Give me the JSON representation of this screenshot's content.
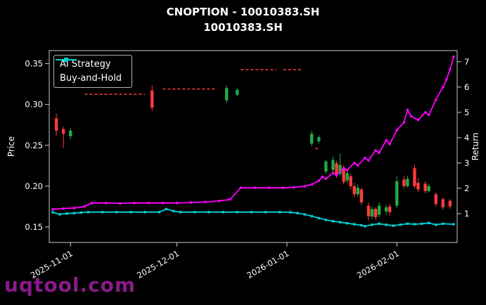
{
  "watermark": {
    "text": "uqtool.com"
  },
  "chart_data": {
    "type": "candlestick+line",
    "title": "CNOPTION - 10010383.SH",
    "subtitle": "10010383.SH",
    "ylabel_left": "Price",
    "ylabel_right": "Return",
    "legend_position": "upper-left",
    "grid": false,
    "price_ticks": [
      "0.15",
      "0.20",
      "0.25",
      "0.30",
      "0.35"
    ],
    "return_ticks": [
      "1",
      "2",
      "3",
      "4",
      "5",
      "6",
      "7"
    ],
    "x_ticks": [
      {
        "day": 5,
        "label": "2025-11-01"
      },
      {
        "day": 35,
        "label": "2025-12-01"
      },
      {
        "day": 66,
        "label": "2026-01-01"
      },
      {
        "day": 97,
        "label": "2026-02-01"
      }
    ],
    "price_lim": [
      0.131,
      0.366
    ],
    "return_lim": [
      -0.14,
      7.44
    ],
    "day_lim": [
      -1,
      114
    ],
    "colors": {
      "ai": "#ff00ff",
      "bh": "#00ced1",
      "up": "#22aa44",
      "down": "#ff3b3b",
      "text": "#ffffff",
      "axis": "#c8c8c8",
      "watermark": "#8b1a8b"
    },
    "series": [
      {
        "name": "AI Strategy",
        "axis": "return",
        "color_key": "ai",
        "marker": "circle",
        "points": [
          [
            0,
            1.17
          ],
          [
            3,
            1.2
          ],
          [
            6,
            1.22
          ],
          [
            9,
            1.28
          ],
          [
            11,
            1.42
          ],
          [
            15,
            1.42
          ],
          [
            19,
            1.4
          ],
          [
            23,
            1.42
          ],
          [
            27,
            1.42
          ],
          [
            31,
            1.42
          ],
          [
            35,
            1.42
          ],
          [
            39,
            1.44
          ],
          [
            43,
            1.46
          ],
          [
            47,
            1.5
          ],
          [
            50,
            1.56
          ],
          [
            53,
            2.02
          ],
          [
            57,
            2.02
          ],
          [
            61,
            2.02
          ],
          [
            65,
            2.02
          ],
          [
            68,
            2.04
          ],
          [
            71,
            2.08
          ],
          [
            73,
            2.15
          ],
          [
            75,
            2.3
          ],
          [
            76,
            2.45
          ],
          [
            77,
            2.38
          ],
          [
            79,
            2.6
          ],
          [
            80,
            2.52
          ],
          [
            82,
            2.8
          ],
          [
            83,
            2.72
          ],
          [
            85,
            3.0
          ],
          [
            86,
            2.9
          ],
          [
            88,
            3.2
          ],
          [
            89,
            3.1
          ],
          [
            91,
            3.5
          ],
          [
            92,
            3.4
          ],
          [
            94,
            3.9
          ],
          [
            95,
            3.75
          ],
          [
            97,
            4.3
          ],
          [
            99,
            4.6
          ],
          [
            100,
            5.1
          ],
          [
            101,
            4.85
          ],
          [
            103,
            4.7
          ],
          [
            105,
            5.0
          ],
          [
            106,
            4.9
          ],
          [
            108,
            5.5
          ],
          [
            110,
            6.0
          ],
          [
            111,
            6.3
          ],
          [
            112,
            6.7
          ],
          [
            113,
            7.2
          ]
        ]
      },
      {
        "name": "Buy-and-Hold",
        "axis": "return",
        "color_key": "bh",
        "marker": "square",
        "points": [
          [
            0,
            1.05
          ],
          [
            2,
            0.97
          ],
          [
            4,
            1.0
          ],
          [
            6,
            1.02
          ],
          [
            8,
            1.04
          ],
          [
            10,
            1.06
          ],
          [
            14,
            1.06
          ],
          [
            18,
            1.06
          ],
          [
            22,
            1.06
          ],
          [
            26,
            1.06
          ],
          [
            30,
            1.06
          ],
          [
            32,
            1.18
          ],
          [
            34,
            1.1
          ],
          [
            36,
            1.06
          ],
          [
            40,
            1.06
          ],
          [
            44,
            1.06
          ],
          [
            48,
            1.06
          ],
          [
            52,
            1.06
          ],
          [
            56,
            1.06
          ],
          [
            60,
            1.06
          ],
          [
            64,
            1.06
          ],
          [
            67,
            1.05
          ],
          [
            69,
            1.02
          ],
          [
            71,
            0.97
          ],
          [
            73,
            0.9
          ],
          [
            75,
            0.82
          ],
          [
            77,
            0.75
          ],
          [
            79,
            0.7
          ],
          [
            81,
            0.66
          ],
          [
            83,
            0.62
          ],
          [
            85,
            0.58
          ],
          [
            87,
            0.54
          ],
          [
            88,
            0.5
          ],
          [
            90,
            0.56
          ],
          [
            92,
            0.6
          ],
          [
            94,
            0.56
          ],
          [
            96,
            0.52
          ],
          [
            98,
            0.56
          ],
          [
            100,
            0.6
          ],
          [
            102,
            0.58
          ],
          [
            104,
            0.6
          ],
          [
            106,
            0.63
          ],
          [
            108,
            0.56
          ],
          [
            110,
            0.6
          ],
          [
            113,
            0.58
          ]
        ]
      }
    ],
    "candles": [
      [
        1,
        0.283,
        0.289,
        0.262,
        0.268
      ],
      [
        3,
        0.27,
        0.273,
        0.247,
        0.264
      ],
      [
        5,
        0.261,
        0.271,
        0.257,
        0.268
      ],
      [
        28,
        0.317,
        0.323,
        0.292,
        0.296
      ],
      [
        49,
        0.305,
        0.323,
        0.302,
        0.32
      ],
      [
        52,
        0.312,
        0.32,
        0.31,
        0.318
      ],
      [
        73,
        0.252,
        0.268,
        0.249,
        0.264
      ],
      [
        75,
        0.255,
        0.262,
        0.252,
        0.26
      ],
      [
        77,
        0.218,
        0.232,
        0.215,
        0.23
      ],
      [
        79,
        0.22,
        0.236,
        0.217,
        0.232
      ],
      [
        80,
        0.228,
        0.231,
        0.21,
        0.214
      ],
      [
        81,
        0.215,
        0.24,
        0.212,
        0.226
      ],
      [
        82,
        0.222,
        0.225,
        0.202,
        0.205
      ],
      [
        83,
        0.207,
        0.22,
        0.204,
        0.216
      ],
      [
        84,
        0.212,
        0.215,
        0.196,
        0.2
      ],
      [
        85,
        0.2,
        0.204,
        0.186,
        0.19
      ],
      [
        86,
        0.19,
        0.202,
        0.187,
        0.198
      ],
      [
        87,
        0.196,
        0.198,
        0.177,
        0.18
      ],
      [
        89,
        0.176,
        0.18,
        0.158,
        0.163
      ],
      [
        90,
        0.163,
        0.175,
        0.16,
        0.172
      ],
      [
        91,
        0.172,
        0.174,
        0.159,
        0.162
      ],
      [
        92,
        0.165,
        0.18,
        0.162,
        0.176
      ],
      [
        94,
        0.169,
        0.177,
        0.165,
        0.174
      ],
      [
        95,
        0.175,
        0.178,
        0.164,
        0.168
      ],
      [
        97,
        0.176,
        0.212,
        0.173,
        0.206
      ],
      [
        99,
        0.208,
        0.212,
        0.197,
        0.2
      ],
      [
        100,
        0.2,
        0.213,
        0.198,
        0.209
      ],
      [
        102,
        0.222,
        0.226,
        0.197,
        0.2
      ],
      [
        103,
        0.204,
        0.21,
        0.193,
        0.196
      ],
      [
        105,
        0.203,
        0.206,
        0.191,
        0.194
      ],
      [
        106,
        0.194,
        0.203,
        0.192,
        0.2
      ],
      [
        108,
        0.19,
        0.192,
        0.175,
        0.178
      ],
      [
        110,
        0.184,
        0.186,
        0.171,
        0.174
      ],
      [
        112,
        0.182,
        0.184,
        0.172,
        0.175
      ]
    ],
    "flat_segments": [
      [
        9,
        26,
        0.3125
      ],
      [
        31,
        46,
        0.319
      ],
      [
        53,
        63,
        0.3425
      ],
      [
        65,
        70,
        0.3425
      ],
      [
        74,
        75,
        0.246
      ]
    ]
  }
}
